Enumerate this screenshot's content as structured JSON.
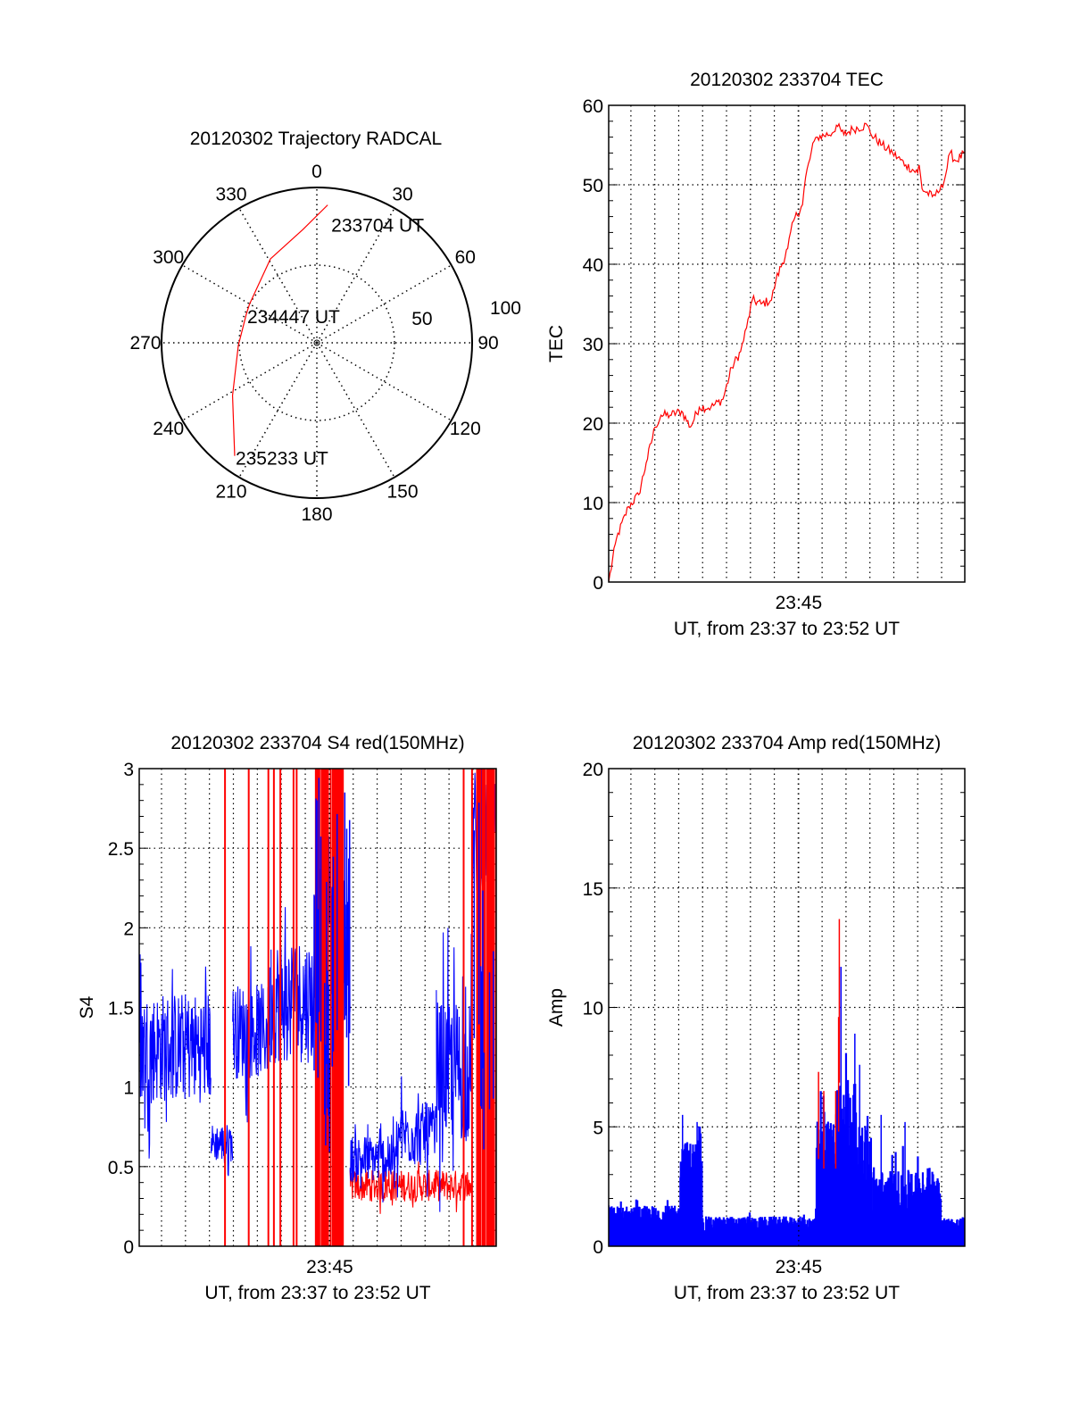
{
  "chart_data": [
    {
      "type": "polar",
      "title": "20120302 Trajectory RADCAL",
      "azimuth_labels": [
        "0",
        "30",
        "60",
        "90",
        "120",
        "150",
        "180",
        "210",
        "240",
        "270",
        "300",
        "330"
      ],
      "radial_labels": [
        "50",
        "100"
      ],
      "rlim": [
        0,
        100
      ],
      "series": [
        {
          "name": "trajectory",
          "color": "#ff0000",
          "points": [
            {
              "az": 4.5,
              "r": 89
            },
            {
              "az": 353,
              "r": 73.5
            },
            {
              "az": 331,
              "r": 61.7
            },
            {
              "az": 300,
              "r": 50
            },
            {
              "az": 292,
              "r": 49
            },
            {
              "az": 268,
              "r": 50.6
            },
            {
              "az": 238,
              "r": 64
            },
            {
              "az": 216,
              "r": 90
            }
          ]
        }
      ],
      "annotations": [
        {
          "text": "233704 UT",
          "point_index": 0
        },
        {
          "text": "234447 UT",
          "point_index": 4
        },
        {
          "text": "235233 UT",
          "point_index": 7
        }
      ]
    },
    {
      "type": "line",
      "title": "20120302 233704 TEC",
      "xlabel": "UT, from 23:37 to 23:52 UT",
      "ylabel": "TEC",
      "xlim_minutes": [
        0,
        14.9
      ],
      "xticks": [
        {
          "minute": 7.95,
          "label": "23:45"
        }
      ],
      "minute_grid_start": 0.93,
      "ylim": [
        0,
        60
      ],
      "yticks": [
        "0",
        "10",
        "20",
        "30",
        "40",
        "50",
        "60"
      ],
      "series": [
        {
          "name": "TEC",
          "color": "#ff0000",
          "points": [
            [
              0,
              0
            ],
            [
              0.33,
              5.5
            ],
            [
              0.83,
              9.5
            ],
            [
              1.26,
              11
            ],
            [
              1.57,
              15
            ],
            [
              1.94,
              19.5
            ],
            [
              2.19,
              21
            ],
            [
              2.56,
              21
            ],
            [
              3.05,
              21.5
            ],
            [
              3.42,
              19.5
            ],
            [
              3.79,
              22
            ],
            [
              4.28,
              22
            ],
            [
              4.78,
              23
            ],
            [
              5.15,
              27
            ],
            [
              5.52,
              29
            ],
            [
              5.77,
              32
            ],
            [
              6.01,
              35.5
            ],
            [
              6.38,
              35
            ],
            [
              6.81,
              35.5
            ],
            [
              7.0,
              38
            ],
            [
              7.49,
              42
            ],
            [
              7.74,
              45.5
            ],
            [
              8.11,
              47.5
            ],
            [
              8.24,
              51
            ],
            [
              8.6,
              55.5
            ],
            [
              8.73,
              56
            ],
            [
              9.35,
              56.5
            ],
            [
              9.53,
              57.5
            ],
            [
              9.84,
              56.3
            ],
            [
              10.21,
              57
            ],
            [
              10.82,
              57.5
            ],
            [
              10.95,
              56.5
            ],
            [
              11.44,
              55
            ],
            [
              11.88,
              54
            ],
            [
              12.43,
              52.5
            ],
            [
              12.93,
              51.5
            ],
            [
              12.99,
              52.5
            ],
            [
              13.11,
              49.5
            ],
            [
              13.54,
              48.5
            ],
            [
              13.79,
              49
            ],
            [
              13.91,
              50
            ],
            [
              14.04,
              50.5
            ],
            [
              14.28,
              54
            ],
            [
              14.53,
              53
            ],
            [
              14.9,
              54
            ]
          ]
        }
      ]
    },
    {
      "type": "line",
      "title": "20120302 233704 S4 red(150MHz)",
      "xlabel": "UT, from 23:37 to 23:52 UT",
      "ylabel": "S4",
      "xlim_minutes": [
        0,
        14.9
      ],
      "xticks": [
        {
          "minute": 7.95,
          "label": "23:45"
        }
      ],
      "minute_grid_start": 0.93,
      "ylim": [
        0,
        3
      ],
      "yticks": [
        "0",
        "0.5",
        "1",
        "1.5",
        "2",
        "2.5",
        "3"
      ],
      "series": [
        {
          "name": "blue",
          "color": "#0000ff",
          "segments": [
            [
              0,
              3.0,
              1.25,
              0.35
            ],
            [
              3.0,
              3.9,
              0.65,
              0.12
            ],
            [
              3.9,
              5.5,
              1.35,
              0.3
            ],
            [
              5.5,
              7.3,
              1.55,
              0.4
            ],
            [
              7.3,
              8.8,
              1.9,
              0.6
            ],
            [
              8.8,
              10.8,
              0.55,
              0.15
            ],
            [
              10.8,
              12.4,
              0.7,
              0.2
            ],
            [
              12.4,
              13.9,
              1.1,
              0.45
            ],
            [
              13.9,
              14.9,
              2.6,
              0.4
            ]
          ]
        },
        {
          "name": "red",
          "color": "#ff0000",
          "segments": [
            [
              8.8,
              13.9,
              0.38,
              0.1
            ]
          ],
          "full_spikes": [
            3.58,
            4.57,
            5.39,
            5.62,
            5.89,
            6.44,
            6.57,
            13.54,
            13.89
          ],
          "dense_bands": [
            [
              7.37,
              7.93
            ],
            [
              7.99,
              8.67
            ],
            [
              14.1,
              14.9
            ]
          ]
        }
      ]
    },
    {
      "type": "bar",
      "title": "20120302 233704 Amp red(150MHz)",
      "xlabel": "UT, from 23:37 to 23:52 UT",
      "ylabel": "Amp",
      "xlim_minutes": [
        0,
        14.9
      ],
      "xticks": [
        {
          "minute": 7.95,
          "label": "23:45"
        }
      ],
      "minute_grid_start": 0.93,
      "ylim": [
        0,
        20
      ],
      "yticks": [
        "0",
        "5",
        "10",
        "15",
        "20"
      ],
      "series": [
        {
          "name": "blue",
          "color": "#0000ff",
          "segments": [
            [
              0,
              3.0,
              1.2,
              0.5
            ],
            [
              3.0,
              3.9,
              3.6,
              0.8
            ],
            [
              3.9,
              8.7,
              0.9,
              0.35
            ],
            [
              8.7,
              9.5,
              3.8,
              1.5
            ],
            [
              9.5,
              10.4,
              5,
              2.2
            ],
            [
              10.4,
              11.0,
              3.5,
              1.5
            ],
            [
              11.0,
              13.3,
              2.2,
              1.0
            ],
            [
              13.3,
              13.9,
              2.5,
              0.8
            ],
            [
              13.9,
              14.9,
              0.9,
              0.3
            ]
          ],
          "peaks": [
            [
              3.09,
              5.5
            ],
            [
              3.7,
              5.2
            ],
            [
              9.72,
              11.7
            ],
            [
              10.3,
              8.9
            ],
            [
              10.5,
              7.6
            ],
            [
              11.4,
              5.5
            ],
            [
              12.4,
              5.2
            ]
          ]
        },
        {
          "name": "red",
          "color": "#ff0000",
          "peaks": [
            [
              8.78,
              7.3
            ],
            [
              9.0,
              6.5
            ],
            [
              9.5,
              6.5
            ],
            [
              9.62,
              9.6
            ],
            [
              9.65,
              13.7
            ]
          ]
        }
      ]
    }
  ]
}
